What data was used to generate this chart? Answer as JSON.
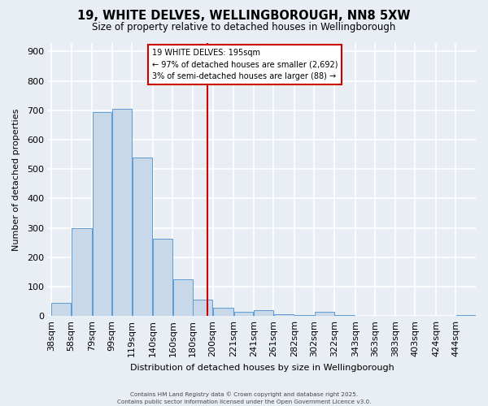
{
  "title": "19, WHITE DELVES, WELLINGBOROUGH, NN8 5XW",
  "subtitle": "Size of property relative to detached houses in Wellingborough",
  "xlabel": "Distribution of detached houses by size in Wellingborough",
  "ylabel": "Number of detached properties",
  "footnote1": "Contains HM Land Registry data © Crown copyright and database right 2025.",
  "footnote2": "Contains public sector information licensed under the Open Government Licence v3.0.",
  "bin_labels": [
    "38sqm",
    "58sqm",
    "79sqm",
    "99sqm",
    "119sqm",
    "140sqm",
    "160sqm",
    "180sqm",
    "200sqm",
    "221sqm",
    "241sqm",
    "261sqm",
    "282sqm",
    "302sqm",
    "322sqm",
    "343sqm",
    "363sqm",
    "383sqm",
    "403sqm",
    "424sqm",
    "444sqm"
  ],
  "bin_edges": [
    38,
    58,
    79,
    99,
    119,
    140,
    160,
    180,
    200,
    221,
    241,
    261,
    282,
    302,
    322,
    343,
    363,
    383,
    403,
    424,
    444
  ],
  "bar_heights": [
    45,
    300,
    695,
    705,
    538,
    263,
    125,
    55,
    28,
    15,
    20,
    5,
    2,
    13,
    2,
    1,
    1,
    0,
    0,
    1,
    3
  ],
  "bar_color": "#c8d8e8",
  "bar_edge_color": "#5b9bd5",
  "property_value": 195,
  "vline_color": "#cc0000",
  "annotation_title": "19 WHITE DELVES: 195sqm",
  "annotation_line1": "← 97% of detached houses are smaller (2,692)",
  "annotation_line2": "3% of semi-detached houses are larger (88) →",
  "annotation_box_edge": "#cc0000",
  "ylim": [
    0,
    930
  ],
  "background_color": "#e8eef4",
  "plot_bg_color": "#e8eef4",
  "grid_color": "#ffffff"
}
